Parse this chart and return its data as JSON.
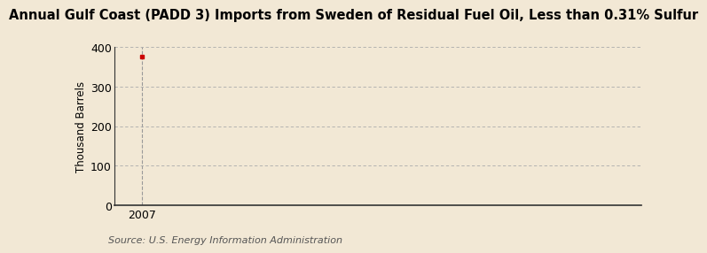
{
  "title": "Annual Gulf Coast (PADD 3) Imports from Sweden of Residual Fuel Oil, Less than 0.31% Sulfur",
  "ylabel": "Thousand Barrels",
  "source_text": "Source: U.S. Energy Information Administration",
  "x_data": [
    2007
  ],
  "y_data": [
    376
  ],
  "marker_color": "#cc0000",
  "marker_style": "s",
  "marker_size": 3.5,
  "xlim": [
    2006.55,
    2015.0
  ],
  "ylim": [
    0,
    400
  ],
  "yticks": [
    0,
    100,
    200,
    300,
    400
  ],
  "xticks": [
    2007
  ],
  "background_color": "#f2e8d5",
  "grid_color": "#aaaaaa",
  "title_fontsize": 10.5,
  "label_fontsize": 8.5,
  "tick_fontsize": 9,
  "source_fontsize": 8
}
